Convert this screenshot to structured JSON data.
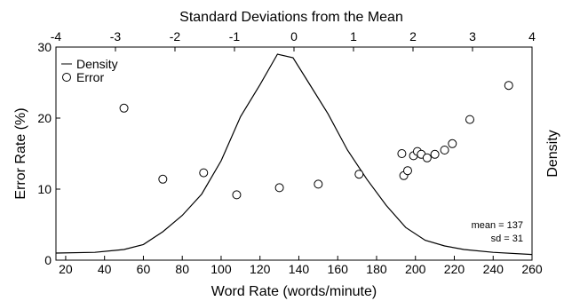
{
  "chart_data": {
    "type": "line",
    "title": "Standard Deviations from the Mean",
    "xlabel": "Word Rate (words/minute)",
    "ylabel": "Error Rate (%)",
    "y2label": "Density",
    "xlim": [
      15,
      260
    ],
    "ylim": [
      0,
      30
    ],
    "x_ticks": [
      "20",
      "40",
      "60",
      "80",
      "100",
      "120",
      "140",
      "160",
      "180",
      "200",
      "220",
      "240",
      "260"
    ],
    "y_ticks": [
      "0",
      "10",
      "20",
      "30"
    ],
    "top_axis": {
      "label": "Standard Deviations from the Mean",
      "ticks": [
        "-4",
        "-3",
        "-2",
        "-1",
        "0",
        "1",
        "2",
        "3",
        "4"
      ],
      "mean": 137,
      "sd": 31
    },
    "legend": {
      "placement": "top-left",
      "entries": [
        {
          "name": "Density",
          "marker": "line"
        },
        {
          "name": "Error",
          "marker": "circle"
        }
      ]
    },
    "annotation": [
      "mean = 137",
      "sd = 31"
    ],
    "series": [
      {
        "name": "Density",
        "style": "line",
        "x": [
          15,
          35,
          50,
          60,
          70,
          80,
          90,
          100,
          110,
          120,
          129,
          137,
          145,
          155,
          165,
          175,
          185,
          195,
          205,
          215,
          225,
          240,
          260
        ],
        "y": [
          1.0,
          1.1,
          1.5,
          2.2,
          4.0,
          6.3,
          9.3,
          14.0,
          20.2,
          24.7,
          29.0,
          28.5,
          25.0,
          20.6,
          15.5,
          11.4,
          7.7,
          4.6,
          2.8,
          2.0,
          1.5,
          1.1,
          0.8
        ]
      },
      {
        "name": "Error",
        "style": "scatter",
        "x": [
          50,
          70,
          91,
          108,
          130,
          150,
          171,
          193,
          194,
          196,
          199,
          201,
          203,
          206,
          210,
          215,
          219,
          228,
          248
        ],
        "y": [
          21.4,
          11.4,
          12.3,
          9.2,
          10.2,
          10.7,
          12.1,
          15.0,
          11.9,
          12.6,
          14.7,
          15.3,
          14.9,
          14.4,
          14.9,
          15.5,
          16.4,
          19.8,
          24.6
        ]
      }
    ]
  }
}
